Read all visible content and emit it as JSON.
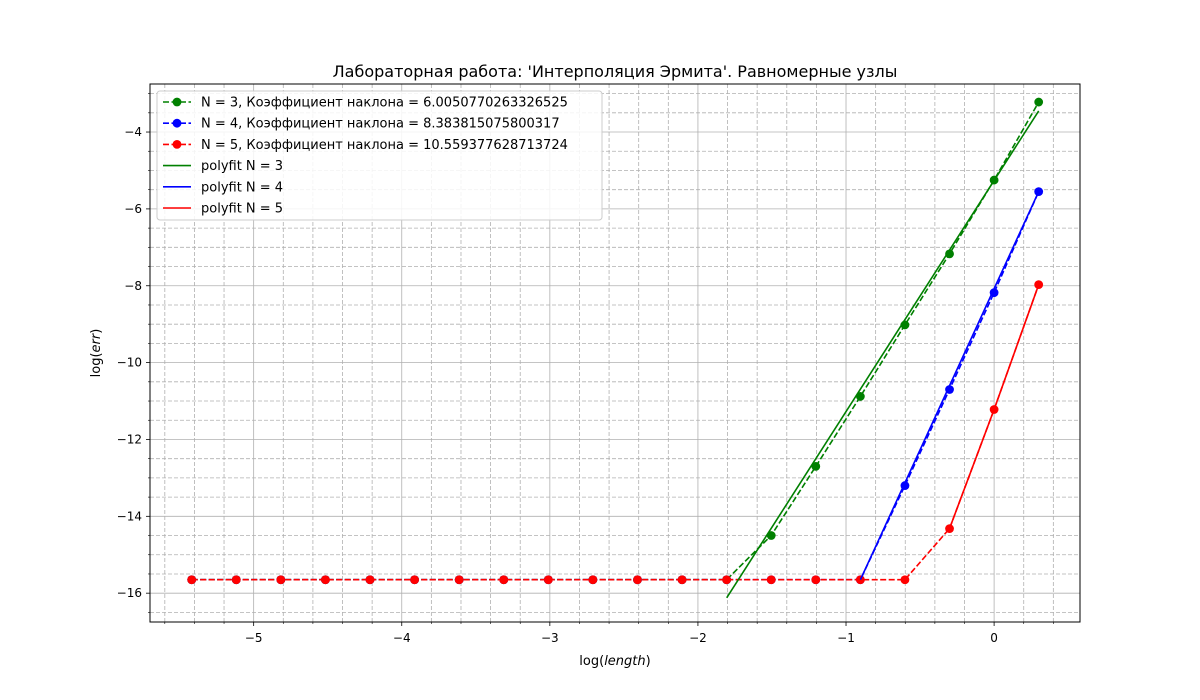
{
  "chart_data": {
    "type": "line",
    "title": "Лабораторная работа: 'Интерполяция Эрмита'. Равномерные узлы",
    "xlabel_prefix": "log(",
    "xlabel_var": "length",
    "xlabel_suffix": ")",
    "ylabel_prefix": "log(",
    "ylabel_var": "err",
    "ylabel_suffix": ")",
    "xlim": [
      -5.7,
      0.58
    ],
    "ylim": [
      -16.75,
      -2.75
    ],
    "xticks": [
      -5,
      -4,
      -3,
      -2,
      -1,
      0
    ],
    "xtick_labels": [
      "−5",
      "−4",
      "−3",
      "−2",
      "−1",
      "0"
    ],
    "yticks": [
      -16,
      -14,
      -12,
      -10,
      -8,
      -6,
      -4
    ],
    "ytick_labels": [
      "−16",
      "−14",
      "−12",
      "−10",
      "−8",
      "−6",
      "−4"
    ],
    "major_grid": true,
    "minor_grid": true,
    "legend_position": "top-left",
    "x": [
      -5.4185,
      -5.1175,
      -4.8165,
      -4.5154,
      -4.2144,
      -3.9134,
      -3.6123,
      -3.3113,
      -3.0103,
      -2.7093,
      -2.4082,
      -2.1072,
      -1.8062,
      -1.5051,
      -1.2041,
      -0.9031,
      -0.6021,
      -0.301,
      0.0,
      0.301
    ],
    "series": [
      {
        "name": "N = 3,  Коэффициент наклона = 6.0050770263326525",
        "color": "#008000",
        "style": "dashed-marker",
        "values": [
          -15.65,
          -15.65,
          -15.65,
          -15.65,
          -15.65,
          -15.65,
          -15.65,
          -15.65,
          -15.65,
          -15.65,
          -15.65,
          -15.65,
          -15.65,
          -14.5,
          -12.7,
          -10.88,
          -9.02,
          -7.17,
          -5.25,
          -3.22
        ]
      },
      {
        "name": "N = 4, Коэффициент наклона = 8.383815075800317",
        "color": "#0000ff",
        "style": "dashed-marker",
        "values": [
          -15.65,
          -15.65,
          -15.65,
          -15.65,
          -15.65,
          -15.65,
          -15.65,
          -15.65,
          -15.65,
          -15.65,
          -15.65,
          -15.65,
          -15.65,
          -15.65,
          -15.65,
          -15.65,
          -13.2,
          -10.7,
          -8.18,
          -5.55
        ]
      },
      {
        "name": "N = 5, Коэффициент наклона = 10.559377628713724",
        "color": "#ff0000",
        "style": "dashed-marker",
        "values": [
          -15.65,
          -15.65,
          -15.65,
          -15.65,
          -15.65,
          -15.65,
          -15.65,
          -15.65,
          -15.65,
          -15.65,
          -15.65,
          -15.65,
          -15.65,
          -15.65,
          -15.65,
          -15.65,
          -15.65,
          -14.32,
          -11.22,
          -7.97
        ]
      },
      {
        "name": "polyfit N = 3",
        "color": "#008000",
        "style": "solid",
        "x": [
          -1.806,
          0.301
        ],
        "values": [
          -16.12,
          -3.45
        ]
      },
      {
        "name": "polyfit N = 4",
        "color": "#0000ff",
        "style": "solid",
        "x": [
          -0.903,
          0.301
        ],
        "values": [
          -15.65,
          -5.55
        ]
      },
      {
        "name": "polyfit N = 5",
        "color": "#ff0000",
        "style": "solid",
        "x": [
          -0.301,
          0.0,
          0.301
        ],
        "values": [
          -14.32,
          -11.22,
          -7.97
        ]
      }
    ]
  }
}
